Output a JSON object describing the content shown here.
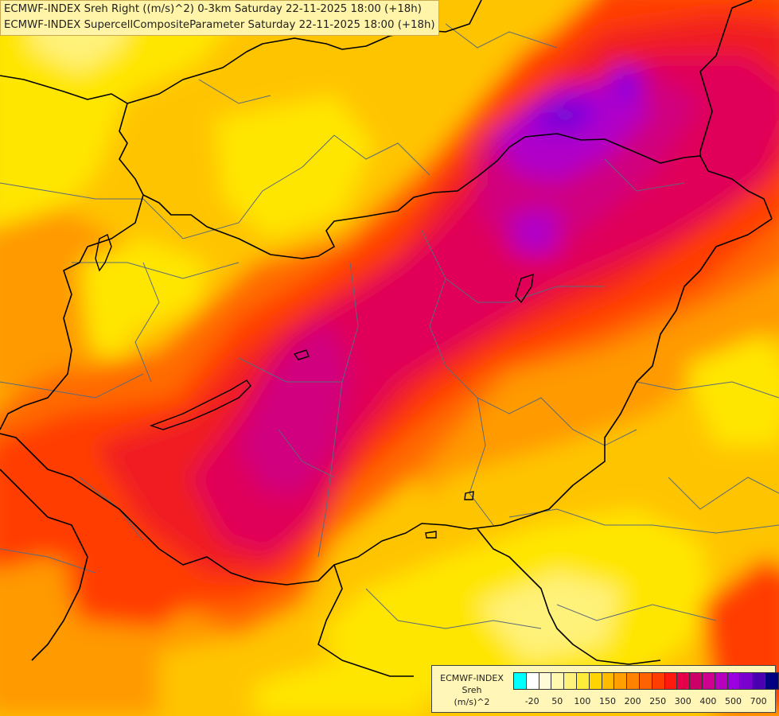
{
  "title": {
    "line1": "ECMWF-INDEX Sreh Right ((m/s)^2) 0-3km Saturday 22-11-2025 18:00 (+18h)",
    "line2": "ECMWF-INDEX SupercellCompositeParameter Saturday 22-11-2025 18:00 (+18h)"
  },
  "legend": {
    "model": "ECMWF-INDEX",
    "variable": "Sreh",
    "unit": "(m/s)^2",
    "colors": [
      "#00ffff",
      "#ffffff",
      "#fffbd8",
      "#fff9b0",
      "#fff27a",
      "#ffeb3a",
      "#ffd400",
      "#ffbb00",
      "#ffa000",
      "#ff8200",
      "#ff6200",
      "#ff3d00",
      "#ff1a10",
      "#e6004a",
      "#cc0066",
      "#d00090",
      "#b800c0",
      "#9a00e0",
      "#7a00d0",
      "#4a00b0",
      "#000080"
    ],
    "ticks": [
      "-20",
      "50",
      "100",
      "150",
      "200",
      "250",
      "300",
      "400",
      "500",
      "700"
    ],
    "tick_index": [
      1,
      3,
      5,
      7,
      9,
      11,
      13,
      15,
      17,
      19
    ]
  },
  "map": {
    "palette": {
      "light_yellow": "#fff27a",
      "yellow": "#ffe600",
      "gold": "#ffc400",
      "orange": "#ff9a00",
      "dark_orange": "#ff6a00",
      "red_orange": "#ff3d00",
      "red": "#f01a20",
      "crimson": "#e0005a",
      "magenta": "#d0007e",
      "purple": "#b000c8",
      "violet": "#8a00e0",
      "indigo": "#6a10d0",
      "border_color": "#000000",
      "region_line_color": "#5a6a7a"
    }
  }
}
